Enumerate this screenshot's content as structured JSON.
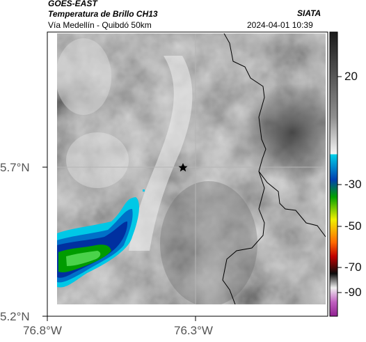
{
  "header": {
    "satellite": "GOES-EAST",
    "product": "Temperatura de Brillo CH13",
    "route": "Vía Medellín - Quibdó 50km",
    "agency": "SIATA",
    "timestamp": "2024-04-01 10:39"
  },
  "axes": {
    "lat_ticks": [
      "5.7°N",
      "5.2°N"
    ],
    "lon_ticks": [
      "76.8°W",
      "76.3°W"
    ]
  },
  "colorbar": {
    "ticks": [
      "20",
      "-30",
      "-50",
      "-70",
      "-90"
    ],
    "palette": [
      "#202020",
      "#8a8a8a",
      "#f2f2f2",
      "#00c8e6",
      "#0040b0",
      "#00b400",
      "#f0f000",
      "#ff6a00",
      "#c00000",
      "#101010",
      "#f0f0f0",
      "#a020a0"
    ]
  },
  "map_features": {
    "marker": "star",
    "grid": true,
    "boundary": "department-border"
  }
}
